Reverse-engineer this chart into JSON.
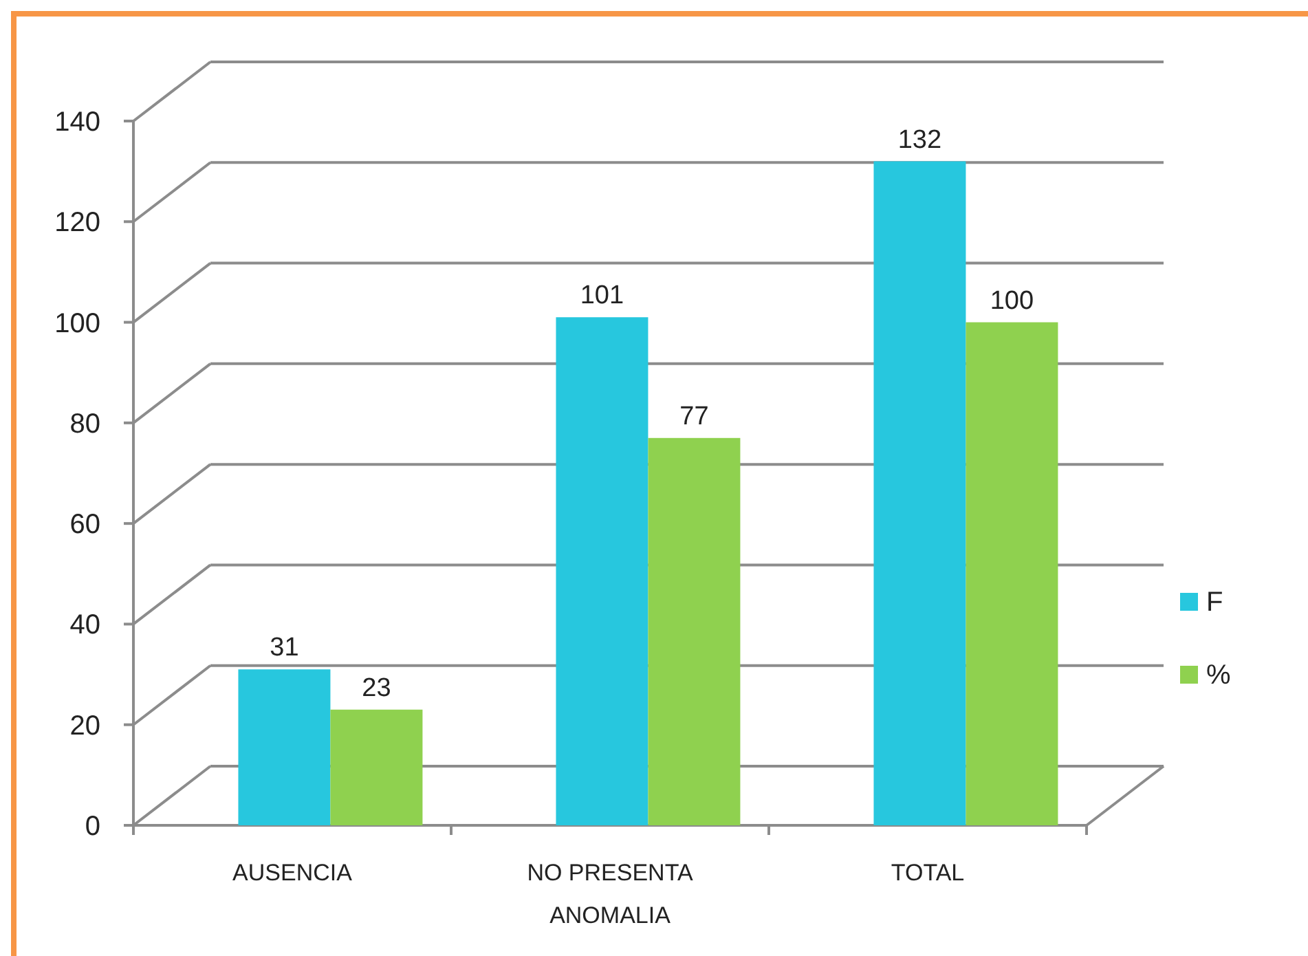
{
  "chart_data": {
    "type": "bar",
    "categories": [
      "AUSENCIA",
      "NO PRESENTA ANOMALIA",
      "TOTAL"
    ],
    "series": [
      {
        "name": "F",
        "color": "#27c7de",
        "values": [
          31,
          101,
          132
        ]
      },
      {
        "name": "%",
        "color": "#8fd14f",
        "values": [
          23,
          77,
          100
        ]
      }
    ],
    "ylim": [
      0,
      140
    ],
    "yticks": [
      0,
      20,
      40,
      60,
      80,
      100,
      120,
      140
    ],
    "grid": "y",
    "legend": "right",
    "data_labels": true
  }
}
